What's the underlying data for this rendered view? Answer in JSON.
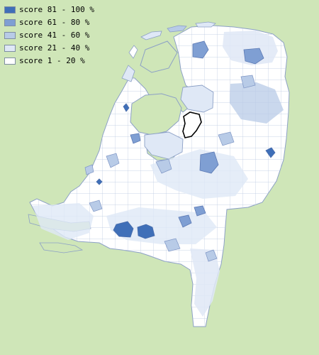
{
  "legend": {
    "items": [
      {
        "label": "score 81 - 100 %",
        "color": "#3f6fb8"
      },
      {
        "label": "score 61 - 80 %",
        "color": "#7f9fd3"
      },
      {
        "label": "score 41 - 60 %",
        "color": "#b8cbe7"
      },
      {
        "label": "score 21 - 40 %",
        "color": "#dfe8f6"
      },
      {
        "label": "score 1 - 20 %",
        "color": "#ffffff"
      }
    ]
  },
  "colors": {
    "background": "#cfe6b8",
    "water": "#cfe6b8",
    "border": "#8ca0c6",
    "highlight_border": "#000000"
  }
}
